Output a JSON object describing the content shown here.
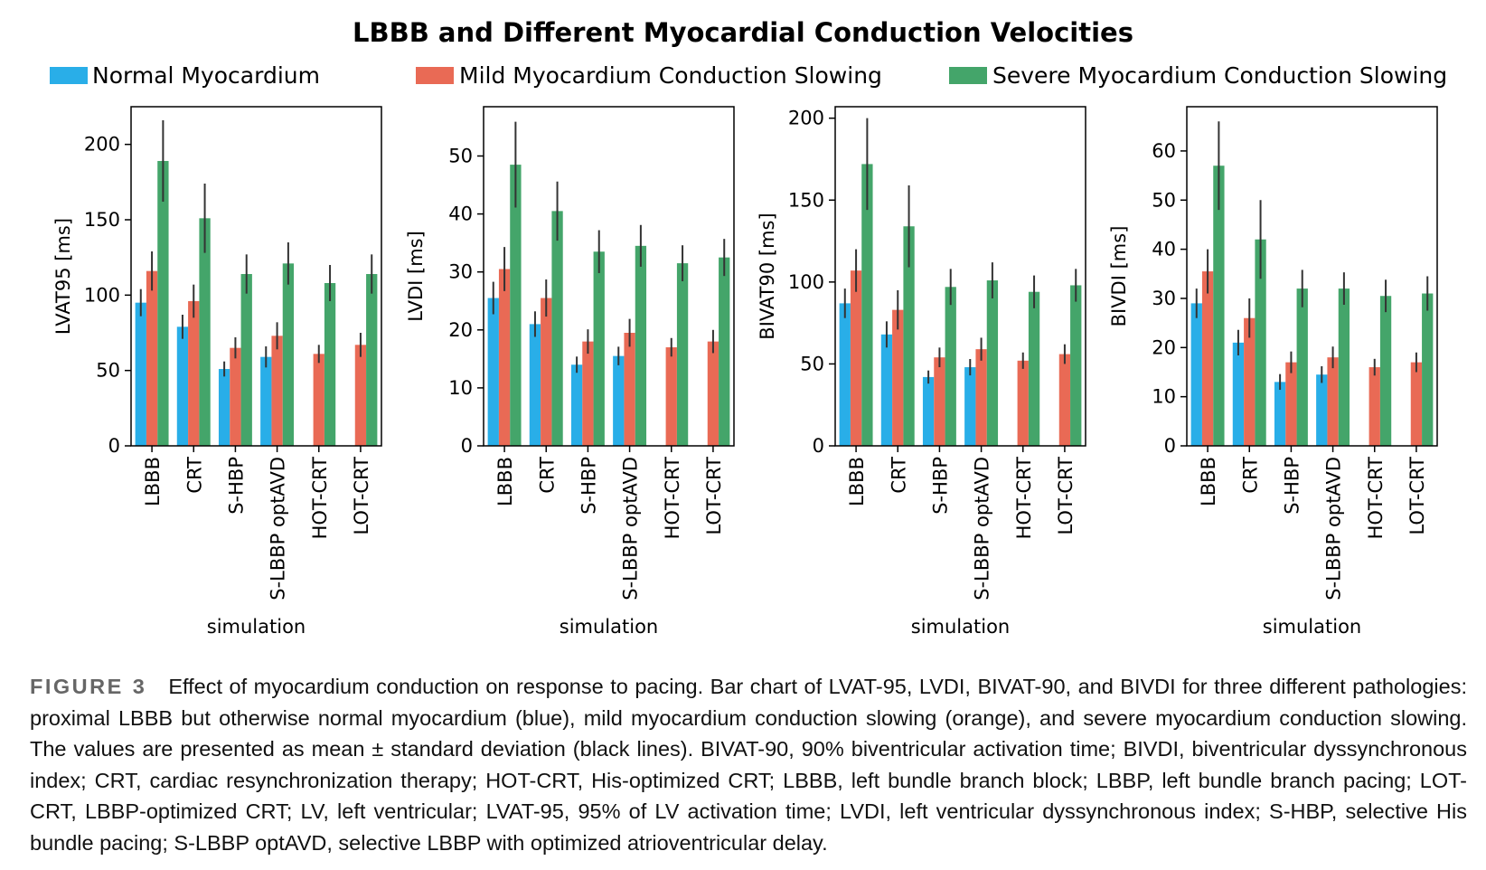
{
  "chart_data": [
    {
      "type": "bar",
      "ylabel": "LVAT95 [ms]",
      "xlabel": "simulation",
      "categories": [
        "LBBB",
        "CRT",
        "S-HBP",
        "S-LBBP optAVD",
        "HOT-CRT",
        "LOT-CRT"
      ],
      "ylim": [
        0,
        225
      ],
      "yticks": [
        0,
        50,
        100,
        150,
        200
      ],
      "series": [
        {
          "name": "Normal Myocardium",
          "values": [
            95,
            79,
            51,
            59,
            null,
            null
          ],
          "errors": [
            9,
            8,
            5,
            7,
            null,
            null
          ]
        },
        {
          "name": "Mild Myocardium Conduction Slowing",
          "values": [
            116,
            96,
            65,
            73,
            61,
            67
          ],
          "errors": [
            13,
            11,
            7,
            9,
            6,
            8
          ]
        },
        {
          "name": "Severe Myocardium Conduction Slowing",
          "values": [
            189,
            151,
            114,
            121,
            108,
            114
          ],
          "errors": [
            27,
            23,
            13,
            14,
            12,
            13
          ]
        }
      ]
    },
    {
      "type": "bar",
      "ylabel": "LVDI [ms]",
      "xlabel": "simulation",
      "categories": [
        "LBBB",
        "CRT",
        "S-HBP",
        "S-LBBP optAVD",
        "HOT-CRT",
        "LOT-CRT"
      ],
      "ylim": [
        0,
        58.5
      ],
      "yticks": [
        0,
        10,
        20,
        30,
        40,
        50
      ],
      "series": [
        {
          "name": "Normal Myocardium",
          "values": [
            25.5,
            21,
            14,
            15.5,
            null,
            null
          ],
          "errors": [
            2.8,
            2.2,
            1.4,
            1.6,
            null,
            null
          ]
        },
        {
          "name": "Mild Myocardium Conduction Slowing",
          "values": [
            30.5,
            25.5,
            18,
            19.5,
            17,
            18
          ],
          "errors": [
            3.8,
            3.2,
            2.1,
            2.4,
            1.6,
            2.0
          ]
        },
        {
          "name": "Severe Myocardium Conduction Slowing",
          "values": [
            48.5,
            40.5,
            33.5,
            34.5,
            31.5,
            32.5
          ],
          "errors": [
            7.4,
            5.1,
            3.7,
            3.6,
            3.1,
            3.2
          ]
        }
      ]
    },
    {
      "type": "bar",
      "ylabel": "BIVAT90 [ms]",
      "xlabel": "simulation",
      "categories": [
        "LBBB",
        "CRT",
        "S-HBP",
        "S-LBBP optAVD",
        "HOT-CRT",
        "LOT-CRT"
      ],
      "ylim": [
        0,
        207
      ],
      "yticks": [
        0,
        50,
        100,
        150,
        200
      ],
      "series": [
        {
          "name": "Normal Myocardium",
          "values": [
            87,
            68,
            42,
            48,
            null,
            null
          ],
          "errors": [
            9,
            8,
            4,
            5,
            null,
            null
          ]
        },
        {
          "name": "Mild Myocardium Conduction Slowing",
          "values": [
            107,
            83,
            54,
            59,
            52,
            56
          ],
          "errors": [
            13,
            12,
            6,
            7,
            5,
            6
          ]
        },
        {
          "name": "Severe Myocardium Conduction Slowing",
          "values": [
            172,
            134,
            97,
            101,
            94,
            98
          ],
          "errors": [
            28,
            25,
            11,
            11,
            10,
            10
          ]
        }
      ]
    },
    {
      "type": "bar",
      "ylabel": "BIVDI [ms]",
      "xlabel": "simulation",
      "categories": [
        "LBBB",
        "CRT",
        "S-HBP",
        "S-LBBP optAVD",
        "HOT-CRT",
        "LOT-CRT"
      ],
      "ylim": [
        0,
        69
      ],
      "yticks": [
        0,
        10,
        20,
        30,
        40,
        50,
        60
      ],
      "series": [
        {
          "name": "Normal Myocardium",
          "values": [
            29,
            21,
            13,
            14.5,
            null,
            null
          ],
          "errors": [
            3,
            2.6,
            1.6,
            1.7,
            null,
            null
          ]
        },
        {
          "name": "Mild Myocardium Conduction Slowing",
          "values": [
            35.5,
            26,
            17,
            18,
            16,
            17
          ],
          "errors": [
            4.5,
            4,
            2.2,
            2.2,
            1.7,
            2
          ]
        },
        {
          "name": "Severe Myocardium Conduction Slowing",
          "values": [
            57,
            42,
            32,
            32,
            30.5,
            31
          ],
          "errors": [
            9,
            8,
            3.8,
            3.3,
            3.3,
            3.5
          ]
        }
      ]
    }
  ],
  "figure": {
    "title": "LBBB and Different Myocardial Conduction Velocities",
    "legend": [
      {
        "label": "Normal Myocardium",
        "color": "#29aee8"
      },
      {
        "label": "Mild Myocardium Conduction Slowing",
        "color": "#e96a55"
      },
      {
        "label": "Severe Myocardium Conduction Slowing",
        "color": "#44a56a"
      }
    ],
    "caption_label": "FIGURE 3",
    "caption_text": "Effect of myocardium conduction on response to pacing. Bar chart of LVAT-95, LVDI, BIVAT-90, and BIVDI for three different pathologies: proximal LBBB but otherwise normal myocardium (blue), mild myocardium conduction slowing (orange), and severe myocardium conduction slowing. The values are presented as mean ± standard deviation (black lines). BIVAT-90, 90% biventricular activation time; BIVDI, biventricular dyssynchronous index; CRT, cardiac resynchronization therapy; HOT-CRT, His-optimized CRT; LBBB, left bundle branch block; LBBP, left bundle branch pacing; LOT-CRT, LBBP-optimized CRT; LV, left ventricular; LVAT-95, 95% of LV activation time; LVDI, left ventricular dyssynchronous index; S-HBP, selective His bundle pacing; S-LBBP optAVD, selective LBBP with optimized atrioventricular delay."
  }
}
